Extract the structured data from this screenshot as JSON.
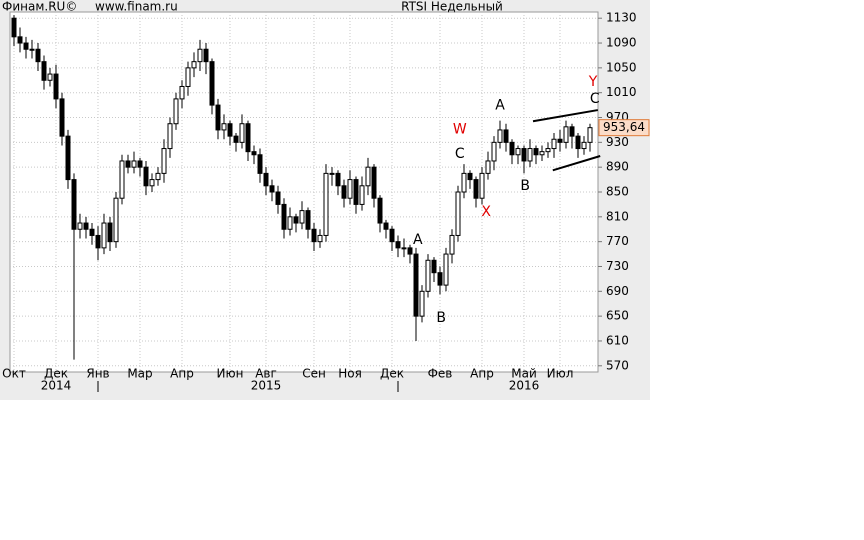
{
  "source": "Финам.RU©",
  "website": "www.finam.ru",
  "chart_data": {
    "type": "candlestick",
    "title": "RTSI Недельный",
    "categories": [
      "Окт",
      null,
      null,
      null,
      null,
      null,
      null,
      "Дек",
      null,
      null,
      null,
      null,
      null,
      null,
      "Янв",
      null,
      null,
      null,
      null,
      null,
      null,
      "Мар",
      null,
      null,
      null,
      null,
      null,
      null,
      "Апр",
      null,
      null,
      null,
      null,
      null,
      null,
      null,
      "Июн",
      null,
      null,
      null,
      null,
      null,
      "Авг",
      null,
      null,
      null,
      null,
      null,
      null,
      null,
      "Сен",
      null,
      null,
      null,
      null,
      null,
      "Ноя",
      null,
      null,
      null,
      null,
      null,
      null,
      "Дек",
      null,
      null,
      null,
      null,
      null,
      null,
      null,
      "Фев",
      null,
      null,
      null,
      null,
      null,
      null,
      "Апр",
      null,
      null,
      null,
      null,
      null,
      null,
      "Май",
      null,
      null,
      null,
      null,
      null,
      "Июл",
      null,
      null,
      null,
      null,
      null
    ],
    "category_years": [
      null,
      null,
      null,
      null,
      null,
      null,
      null,
      "2014",
      null,
      null,
      null,
      null,
      null,
      null,
      null,
      null,
      null,
      null,
      null,
      null,
      null,
      null,
      null,
      null,
      null,
      null,
      null,
      null,
      null,
      null,
      null,
      null,
      null,
      null,
      null,
      null,
      null,
      null,
      null,
      null,
      null,
      null,
      "2015",
      null,
      null,
      null,
      null,
      null,
      null,
      null,
      null,
      null,
      null,
      null,
      null,
      null,
      null,
      null,
      null,
      null,
      null,
      null,
      null,
      null,
      null,
      null,
      null,
      null,
      null,
      null,
      null,
      null,
      null,
      null,
      null,
      null,
      null,
      null,
      null,
      null,
      null,
      null,
      null,
      null,
      null,
      "2016",
      null,
      null,
      null,
      null,
      null,
      null,
      null,
      null,
      null,
      null,
      null
    ],
    "open": [
      1130,
      1100,
      1090,
      1080,
      1080,
      1060,
      1030,
      1040,
      1000,
      940,
      870,
      790,
      800,
      790,
      780,
      760,
      800,
      770,
      840,
      900,
      890,
      900,
      890,
      860,
      870,
      880,
      920,
      960,
      1000,
      1020,
      1050,
      1060,
      1080,
      1060,
      990,
      950,
      960,
      940,
      930,
      960,
      915,
      910,
      880,
      860,
      850,
      830,
      790,
      810,
      800,
      820,
      790,
      770,
      780,
      880,
      880,
      860,
      840,
      870,
      830,
      860,
      890,
      840,
      800,
      790,
      770,
      760,
      760,
      750,
      650,
      690,
      740,
      720,
      700,
      750,
      780,
      850,
      880,
      870,
      840,
      880,
      900,
      930,
      950,
      930,
      910,
      920,
      900,
      920,
      910,
      915,
      920,
      935,
      930,
      955,
      940,
      920,
      930
    ],
    "high": [
      1135,
      1115,
      1100,
      1095,
      1090,
      1070,
      1050,
      1055,
      1010,
      950,
      880,
      815,
      810,
      800,
      795,
      815,
      810,
      850,
      910,
      910,
      915,
      905,
      900,
      880,
      890,
      935,
      970,
      1010,
      1030,
      1060,
      1075,
      1095,
      1090,
      1065,
      1000,
      975,
      965,
      945,
      975,
      965,
      925,
      920,
      890,
      870,
      860,
      840,
      825,
      815,
      835,
      825,
      800,
      790,
      895,
      890,
      885,
      870,
      885,
      875,
      875,
      905,
      895,
      845,
      805,
      795,
      780,
      775,
      765,
      760,
      700,
      750,
      745,
      730,
      760,
      790,
      860,
      895,
      885,
      875,
      890,
      915,
      940,
      965,
      960,
      935,
      925,
      925,
      935,
      925,
      925,
      930,
      945,
      950,
      965,
      960,
      945,
      940,
      960
    ],
    "low": [
      1085,
      1075,
      1065,
      1065,
      1045,
      1015,
      1020,
      985,
      925,
      855,
      580,
      775,
      775,
      765,
      740,
      750,
      755,
      760,
      830,
      880,
      880,
      875,
      845,
      850,
      860,
      865,
      905,
      950,
      985,
      1005,
      1035,
      1045,
      1040,
      975,
      935,
      935,
      925,
      915,
      920,
      900,
      895,
      865,
      845,
      835,
      815,
      775,
      780,
      785,
      790,
      775,
      755,
      760,
      770,
      860,
      845,
      825,
      830,
      815,
      820,
      845,
      825,
      785,
      775,
      755,
      745,
      745,
      735,
      610,
      640,
      680,
      705,
      685,
      690,
      735,
      770,
      840,
      855,
      825,
      830,
      870,
      885,
      920,
      915,
      895,
      895,
      880,
      890,
      895,
      900,
      905,
      905,
      915,
      920,
      920,
      905,
      910,
      915
    ],
    "close": [
      1100,
      1090,
      1080,
      1080,
      1060,
      1030,
      1040,
      1000,
      940,
      870,
      790,
      800,
      790,
      780,
      760,
      800,
      770,
      840,
      900,
      890,
      900,
      890,
      860,
      870,
      880,
      920,
      960,
      1000,
      1020,
      1050,
      1060,
      1080,
      1060,
      990,
      950,
      960,
      940,
      930,
      960,
      915,
      910,
      880,
      860,
      850,
      830,
      790,
      810,
      800,
      820,
      790,
      770,
      780,
      880,
      880,
      860,
      840,
      870,
      830,
      860,
      890,
      840,
      800,
      790,
      770,
      760,
      760,
      750,
      650,
      690,
      740,
      720,
      700,
      750,
      780,
      850,
      880,
      870,
      840,
      880,
      900,
      930,
      950,
      930,
      910,
      920,
      900,
      920,
      910,
      915,
      920,
      935,
      930,
      955,
      940,
      920,
      930,
      953.64
    ],
    "last_value_label": "953,64",
    "up_color": "#ffffff",
    "down_color": "#000000",
    "ylim": [
      560,
      1140
    ],
    "yticks": [
      570,
      610,
      650,
      690,
      730,
      770,
      810,
      850,
      890,
      930,
      970,
      1010,
      1050,
      1090,
      1130
    ],
    "grid": true,
    "annotations": [
      {
        "text": "A",
        "x": 67.3,
        "y": 773,
        "color": "#000000"
      },
      {
        "text": "B",
        "x": 71.2,
        "y": 647,
        "color": "#000000"
      },
      {
        "text": "C",
        "x": 74.3,
        "y": 911,
        "color": "#000000"
      },
      {
        "text": "W",
        "x": 74.3,
        "y": 951,
        "color": "#e00000"
      },
      {
        "text": "X",
        "x": 78.7,
        "y": 818,
        "color": "#e00000"
      },
      {
        "text": "A",
        "x": 81,
        "y": 989,
        "color": "#000000"
      },
      {
        "text": "B",
        "x": 85.2,
        "y": 860,
        "color": "#000000"
      },
      {
        "text": "C",
        "x": 96.8,
        "y": 1000,
        "color": "#000000"
      },
      {
        "text": "Y",
        "x": 96.5,
        "y": 1027,
        "color": "#e00000"
      }
    ],
    "trend_lines": [
      {
        "x": [
          86.5,
          97.3
        ],
        "y": [
          964,
          982
        ]
      },
      {
        "x": [
          89.8,
          97.7
        ],
        "y": [
          885,
          908
        ]
      }
    ]
  }
}
